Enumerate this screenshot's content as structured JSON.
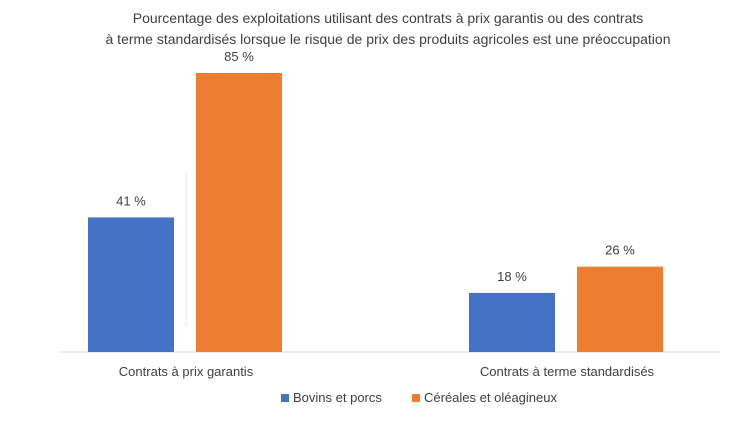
{
  "chart_data": {
    "type": "bar",
    "title_lines": [
      "Pourcentage des exploitations utilisant des contrats à prix garantis ou des contrats",
      "à terme standardisés lorsque le risque de prix des produits agricoles est une préoccupation"
    ],
    "categories": [
      "Contrats à prix garantis",
      "Contrats à terme standardisés"
    ],
    "series": [
      {
        "name": "Bovins et porcs",
        "values": [
          41,
          18
        ],
        "labels": [
          "41 %",
          "18 %"
        ],
        "color": "#4472C4"
      },
      {
        "name": "Céréales et oléagineux",
        "values": [
          85,
          26
        ],
        "labels": [
          "85 %",
          "26 %"
        ],
        "color": "#ED7D31"
      }
    ],
    "ylim": [
      0,
      85
    ],
    "grid": false,
    "legend_position": "bottom"
  }
}
